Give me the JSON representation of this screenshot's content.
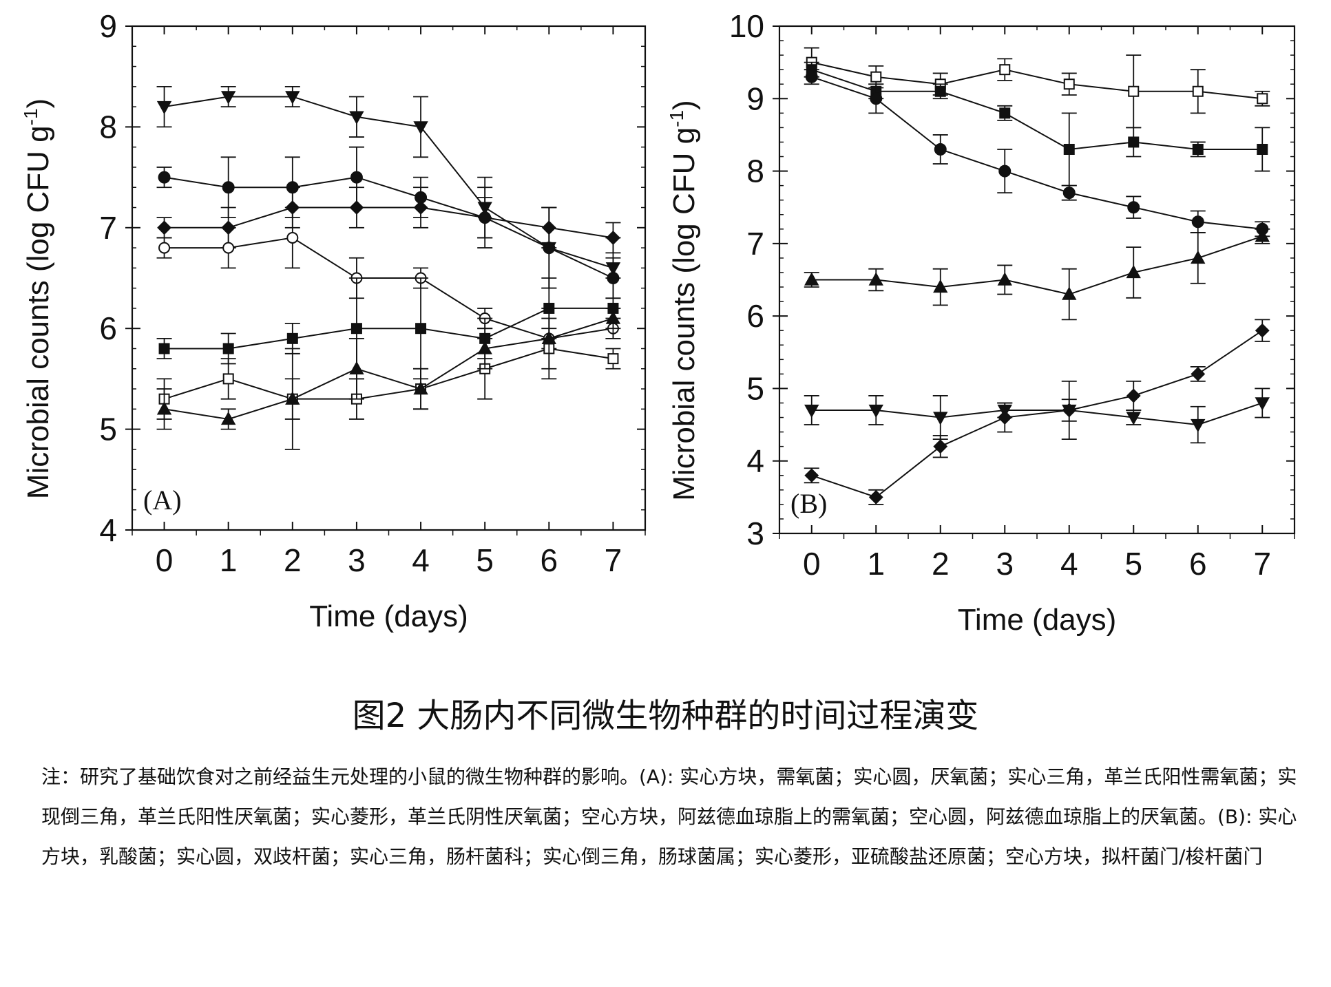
{
  "figure": {
    "title": "图2 大肠内不同微生物种群的时间过程演变",
    "note": "注：研究了基础饮食对之前经益生元处理的小鼠的微生物种群的影响。(A): 实心方块，需氧菌；实心圆，厌氧菌；实心三角，革兰氏阳性需氧菌；实现倒三角，革兰氏阳性厌氧菌；实心菱形，革兰氏阴性厌氧菌；空心方块，阿兹德血琼脂上的需氧菌；空心圆，阿兹德血琼脂上的厌氧菌。(B): 实心方块，乳酸菌；实心圆，双歧杆菌；实心三角，肠杆菌科；实心倒三角，肠球菌属；实心菱形，亚硫酸盐还原菌；空心方块，拟杆菌门/梭杆菌门"
  },
  "chart_data": [
    {
      "type": "line",
      "panel_label": "(A)",
      "xlabel": "Time (days)",
      "ylabel": "Microbial counts (log CFU g",
      "ylabel_sup": "-1",
      "ylabel_tail": ")",
      "x": [
        0,
        1,
        2,
        3,
        4,
        5,
        6,
        7
      ],
      "xlim": [
        -0.5,
        7.5
      ],
      "ylim": [
        4,
        9
      ],
      "yticks": [
        4,
        5,
        6,
        7,
        8,
        9
      ],
      "grid": false,
      "series": [
        {
          "marker": "tri-down",
          "values": [
            8.2,
            8.3,
            8.3,
            8.1,
            8.0,
            7.2,
            6.8,
            6.6
          ],
          "errors": [
            0.2,
            0.1,
            0.1,
            0.2,
            0.3,
            0.3,
            0.4,
            0.3
          ]
        },
        {
          "marker": "circle",
          "values": [
            7.5,
            7.4,
            7.4,
            7.5,
            7.3,
            7.1,
            6.8,
            6.5
          ],
          "errors": [
            0.1,
            0.3,
            0.3,
            0.3,
            0.2,
            0.3,
            0.4,
            0.2
          ]
        },
        {
          "marker": "diamond",
          "values": [
            7.0,
            7.0,
            7.2,
            7.2,
            7.2,
            7.1,
            7.0,
            6.9
          ],
          "errors": [
            0.1,
            0.2,
            0.2,
            0.2,
            0.2,
            0.2,
            0.2,
            0.15
          ]
        },
        {
          "marker": "circle-open",
          "values": [
            6.8,
            6.8,
            6.9,
            6.5,
            6.5,
            6.1,
            5.9,
            6.0
          ],
          "errors": [
            0.1,
            0.2,
            0.3,
            0.2,
            0.1,
            0.1,
            0.1,
            0.1
          ]
        },
        {
          "marker": "square",
          "values": [
            5.8,
            5.8,
            5.9,
            6.0,
            6.0,
            5.9,
            6.2,
            6.2
          ],
          "errors": [
            0.1,
            0.15,
            0.15,
            0.5,
            0.5,
            0.2,
            0.3,
            0.3
          ]
        },
        {
          "marker": "square-open",
          "values": [
            5.3,
            5.5,
            5.3,
            5.3,
            5.4,
            5.6,
            5.8,
            5.7
          ],
          "errors": [
            0.2,
            0.2,
            0.5,
            0.2,
            0.2,
            0.3,
            0.3,
            0.1
          ]
        },
        {
          "marker": "tri-up",
          "values": [
            5.2,
            5.1,
            5.3,
            5.6,
            5.4,
            5.8,
            5.9,
            6.1
          ],
          "errors": [
            0.2,
            0.1,
            0.2,
            0.3,
            0.2,
            0.2,
            0.3,
            0.1
          ]
        }
      ]
    },
    {
      "type": "line",
      "panel_label": "(B)",
      "xlabel": "Time (days)",
      "ylabel": "Microbial counts (log CFU g",
      "ylabel_sup": "-1",
      "ylabel_tail": ")",
      "x": [
        0,
        1,
        2,
        3,
        4,
        5,
        6,
        7
      ],
      "xlim": [
        -0.5,
        7.5
      ],
      "ylim": [
        3,
        10
      ],
      "yticks": [
        3,
        4,
        5,
        6,
        7,
        8,
        9,
        10
      ],
      "grid": false,
      "series": [
        {
          "marker": "square-open",
          "values": [
            9.5,
            9.3,
            9.2,
            9.4,
            9.2,
            9.1,
            9.1,
            9.0
          ],
          "errors": [
            0.2,
            0.15,
            0.15,
            0.15,
            0.15,
            0.5,
            0.3,
            0.1
          ]
        },
        {
          "marker": "square",
          "values": [
            9.4,
            9.1,
            9.1,
            8.8,
            8.3,
            8.4,
            8.3,
            8.3
          ],
          "errors": [
            0.1,
            0.1,
            0.1,
            0.1,
            0.5,
            0.2,
            0.1,
            0.3
          ]
        },
        {
          "marker": "circle",
          "values": [
            9.3,
            9.0,
            8.3,
            8.0,
            7.7,
            7.5,
            7.3,
            7.2
          ],
          "errors": [
            0.1,
            0.2,
            0.2,
            0.3,
            0.1,
            0.15,
            0.15,
            0.1
          ]
        },
        {
          "marker": "tri-up",
          "values": [
            6.5,
            6.5,
            6.4,
            6.5,
            6.3,
            6.6,
            6.8,
            7.1
          ],
          "errors": [
            0.1,
            0.15,
            0.25,
            0.2,
            0.35,
            0.35,
            0.35,
            0.1
          ]
        },
        {
          "marker": "tri-down",
          "values": [
            4.7,
            4.7,
            4.6,
            4.7,
            4.7,
            4.6,
            4.5,
            4.8
          ],
          "errors": [
            0.2,
            0.2,
            0.3,
            0.1,
            0.4,
            0.1,
            0.25,
            0.2
          ]
        },
        {
          "marker": "diamond",
          "values": [
            3.8,
            3.5,
            4.2,
            4.6,
            4.7,
            4.9,
            5.2,
            5.8
          ],
          "errors": [
            0.1,
            0.1,
            0.15,
            0.2,
            0.15,
            0.2,
            0.1,
            0.15
          ]
        }
      ]
    }
  ]
}
